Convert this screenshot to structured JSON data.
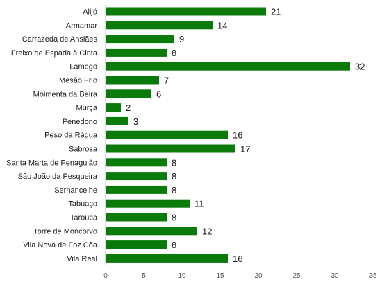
{
  "chart_data": {
    "type": "bar",
    "orientation": "horizontal",
    "categories": [
      "Alijó",
      "Armamar",
      "Carrazeda  de Ansiães",
      "Freixo de Espada à Cinta",
      "Lamego",
      "Mesão Frio",
      "Moimenta da Beira",
      "Murça",
      "Penedono",
      "Peso da Régua",
      "Sabrosa",
      "Santa Marta de Penaguião",
      "São João da Pesqueira",
      "Sernancelhe",
      "Tabuaço",
      "Tarouca",
      "Torre de Moncorvo",
      "Vila Nova de Foz Côa",
      "Vila Real"
    ],
    "values": [
      21,
      14,
      9,
      8,
      32,
      7,
      6,
      2,
      3,
      16,
      17,
      8,
      8,
      8,
      11,
      8,
      12,
      8,
      16
    ],
    "xlim": [
      0,
      35
    ],
    "xticks": [
      "0",
      "5",
      "10",
      "15",
      "20",
      "25",
      "30",
      "35"
    ],
    "bar_color": "#0a7a0a",
    "axis_color": "#bfbfbf",
    "grid": false,
    "legend": "none"
  }
}
